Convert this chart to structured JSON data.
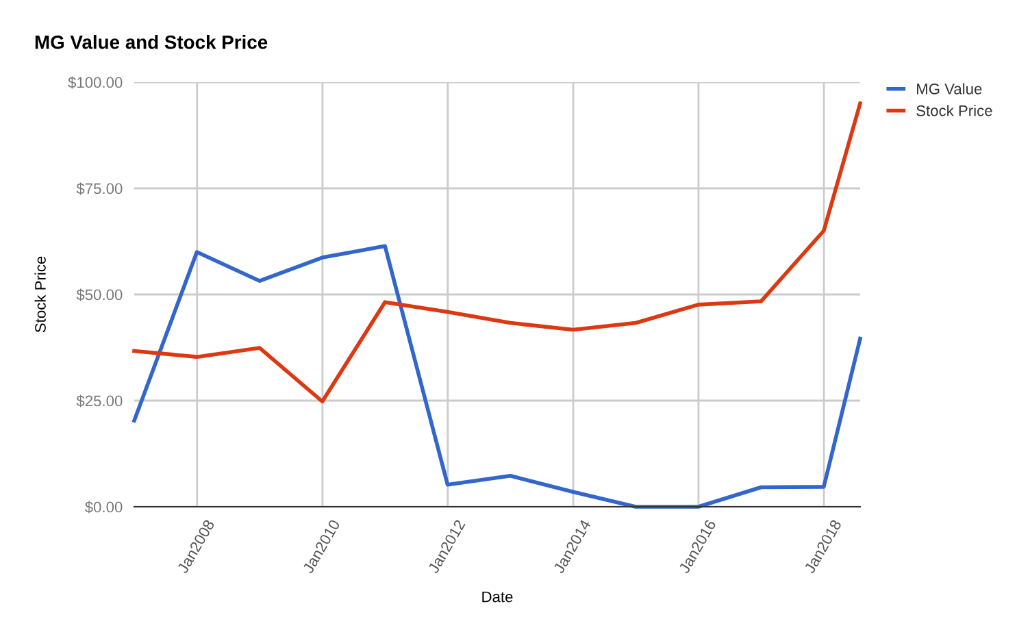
{
  "chart_data": {
    "type": "line",
    "title": "MG Value and Stock Price",
    "xlabel": "Date",
    "ylabel": "Stock Price",
    "x": [
      "2006-12-31",
      "2007-12-31",
      "2008-12-31",
      "2009-12-31",
      "2010-12-31",
      "2011-12-31",
      "2012-12-31",
      "2013-12-31",
      "2014-12-31",
      "2015-12-31",
      "2016-12-31",
      "2017-12-31",
      "2018-07-31"
    ],
    "series": [
      {
        "name": "MG Value",
        "color": "#3366cc",
        "values": [
          20.3,
          60,
          53.2,
          58.7,
          61.4,
          5.2,
          7.3,
          3.5,
          0,
          0,
          4.6,
          4.7,
          39.6
        ]
      },
      {
        "name": "Stock Price",
        "color": "#dc3912",
        "values": [
          36.7,
          35.3,
          37.4,
          24.8,
          48.2,
          45.9,
          43.3,
          41.7,
          43.3,
          47.6,
          48.4,
          65,
          95
        ]
      }
    ],
    "xlim": [
      "2006-12-31",
      "2018-07-31"
    ],
    "xticks": [
      {
        "value": "2008-01-01",
        "label": "Jan2008"
      },
      {
        "value": "2010-01-01",
        "label": "Jan2010"
      },
      {
        "value": "2012-01-01",
        "label": "Jan2012"
      },
      {
        "value": "2014-01-01",
        "label": "Jan2014"
      },
      {
        "value": "2016-01-01",
        "label": "Jan2016"
      },
      {
        "value": "2018-01-01",
        "label": "Jan2018"
      }
    ],
    "ylim": [
      0,
      100
    ],
    "yticks": [
      {
        "value": 0,
        "label": "$0.00"
      },
      {
        "value": 25,
        "label": "$25.00"
      },
      {
        "value": 50,
        "label": "$50.00"
      },
      {
        "value": 75,
        "label": "$75.00"
      },
      {
        "value": 100,
        "label": "$100.00"
      }
    ],
    "grid": true,
    "legend": "top right",
    "marker": "none",
    "line_style": "solid"
  }
}
